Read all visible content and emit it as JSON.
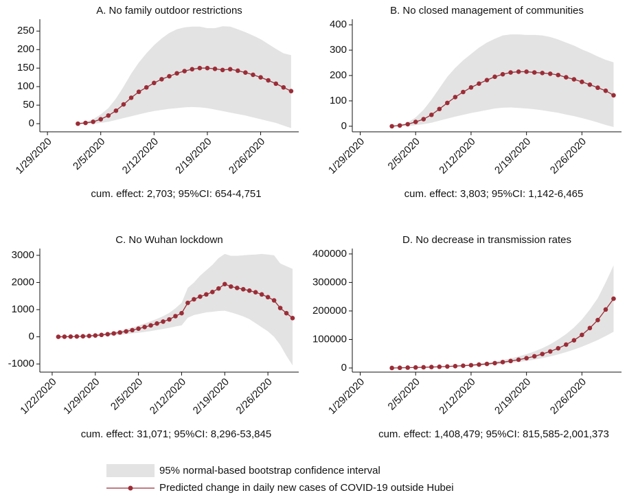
{
  "chart_data": [
    {
      "type": "line",
      "title": "A. No family outdoor restrictions",
      "note": "cum. effect: 2,703; 95%CI: 654-4,751",
      "x": [
        "2/2/2020",
        "2/3/2020",
        "2/4/2020",
        "2/5/2020",
        "2/6/2020",
        "2/7/2020",
        "2/8/2020",
        "2/9/2020",
        "2/10/2020",
        "2/11/2020",
        "2/12/2020",
        "2/13/2020",
        "2/14/2020",
        "2/15/2020",
        "2/16/2020",
        "2/17/2020",
        "2/18/2020",
        "2/19/2020",
        "2/20/2020",
        "2/21/2020",
        "2/22/2020",
        "2/23/2020",
        "2/24/2020",
        "2/25/2020",
        "2/26/2020",
        "2/27/2020",
        "2/28/2020",
        "2/29/2020",
        "3/1/2020"
      ],
      "values": [
        0,
        2,
        5,
        12,
        22,
        35,
        52,
        70,
        86,
        98,
        110,
        120,
        128,
        136,
        142,
        147,
        150,
        150,
        148,
        145,
        147,
        143,
        138,
        132,
        125,
        117,
        108,
        98,
        88
      ],
      "upper": [
        2,
        5,
        12,
        25,
        42,
        68,
        100,
        135,
        165,
        190,
        212,
        230,
        245,
        255,
        260,
        262,
        262,
        258,
        258,
        263,
        262,
        255,
        247,
        238,
        228,
        215,
        202,
        190,
        185
      ],
      "lower": [
        0,
        0,
        0,
        2,
        5,
        10,
        15,
        20,
        25,
        30,
        34,
        37,
        40,
        42,
        44,
        45,
        44,
        42,
        38,
        34,
        30,
        26,
        22,
        17,
        12,
        7,
        2,
        -5,
        -12
      ],
      "xlim": [
        "1/28/2020",
        "3/2/2020"
      ],
      "xticks": [
        "1/29/2020",
        "2/5/2020",
        "2/12/2020",
        "2/19/2020",
        "2/26/2020"
      ],
      "ylim": [
        -22,
        282
      ],
      "yticks": [
        0,
        50,
        100,
        150,
        200,
        250
      ],
      "line_color": "#9b2d37",
      "band_color": "#e3e3e3"
    },
    {
      "type": "line",
      "title": "B. No closed management of communities",
      "note": "cum. effect: 3,803; 95%CI: 1,142-6,465",
      "x": [
        "2/2/2020",
        "2/3/2020",
        "2/4/2020",
        "2/5/2020",
        "2/6/2020",
        "2/7/2020",
        "2/8/2020",
        "2/9/2020",
        "2/10/2020",
        "2/11/2020",
        "2/12/2020",
        "2/13/2020",
        "2/14/2020",
        "2/15/2020",
        "2/16/2020",
        "2/17/2020",
        "2/18/2020",
        "2/19/2020",
        "2/20/2020",
        "2/21/2020",
        "2/22/2020",
        "2/23/2020",
        "2/24/2020",
        "2/25/2020",
        "2/26/2020",
        "2/27/2020",
        "2/28/2020",
        "2/29/2020",
        "3/1/2020"
      ],
      "values": [
        0,
        3,
        8,
        17,
        28,
        45,
        68,
        92,
        115,
        135,
        153,
        168,
        182,
        195,
        205,
        212,
        215,
        215,
        212,
        210,
        207,
        202,
        193,
        185,
        175,
        164,
        152,
        140,
        122
      ],
      "upper": [
        2,
        6,
        15,
        35,
        65,
        105,
        150,
        195,
        230,
        260,
        285,
        310,
        330,
        345,
        358,
        362,
        362,
        360,
        360,
        358,
        352,
        342,
        330,
        318,
        303,
        290,
        275,
        262,
        252
      ],
      "lower": [
        0,
        0,
        1,
        4,
        8,
        14,
        22,
        30,
        38,
        45,
        52,
        58,
        64,
        70,
        73,
        74,
        72,
        70,
        67,
        63,
        58,
        53,
        46,
        40,
        32,
        24,
        15,
        5,
        -3
      ],
      "xlim": [
        "1/28/2020",
        "3/2/2020"
      ],
      "xticks": [
        "1/29/2020",
        "2/5/2020",
        "2/12/2020",
        "2/19/2020",
        "2/26/2020"
      ],
      "ylim": [
        -22,
        422
      ],
      "yticks": [
        0,
        100,
        200,
        300,
        400
      ],
      "line_color": "#9b2d37",
      "band_color": "#e3e3e3"
    },
    {
      "type": "line",
      "title": "C. No Wuhan lockdown",
      "note": "cum. effect: 31,071; 95%CI: 8,296-53,845",
      "x": [
        "1/23/2020",
        "1/24/2020",
        "1/25/2020",
        "1/26/2020",
        "1/27/2020",
        "1/28/2020",
        "1/29/2020",
        "1/30/2020",
        "1/31/2020",
        "2/1/2020",
        "2/2/2020",
        "2/3/2020",
        "2/4/2020",
        "2/5/2020",
        "2/6/2020",
        "2/7/2020",
        "2/8/2020",
        "2/9/2020",
        "2/10/2020",
        "2/11/2020",
        "2/12/2020",
        "2/13/2020",
        "2/14/2020",
        "2/15/2020",
        "2/16/2020",
        "2/17/2020",
        "2/18/2020",
        "2/19/2020",
        "2/20/2020",
        "2/21/2020",
        "2/22/2020",
        "2/23/2020",
        "2/24/2020",
        "2/25/2020",
        "2/26/2020",
        "2/27/2020",
        "2/28/2020",
        "2/29/2020",
        "3/1/2020"
      ],
      "values": [
        0,
        3,
        6,
        12,
        20,
        32,
        48,
        70,
        95,
        125,
        160,
        200,
        245,
        300,
        360,
        420,
        490,
        560,
        640,
        760,
        870,
        1250,
        1380,
        1480,
        1560,
        1650,
        1780,
        1940,
        1850,
        1800,
        1750,
        1700,
        1640,
        1560,
        1460,
        1340,
        1060,
        870,
        690
      ],
      "upper": [
        0,
        5,
        10,
        20,
        35,
        55,
        80,
        110,
        145,
        185,
        230,
        280,
        340,
        410,
        490,
        570,
        660,
        760,
        880,
        1050,
        1250,
        1800,
        2000,
        2250,
        2450,
        2650,
        2900,
        3050,
        2980,
        2980,
        3000,
        3020,
        3030,
        3050,
        3030,
        3000,
        2700,
        2600,
        2500
      ],
      "lower": [
        0,
        0,
        2,
        5,
        8,
        12,
        18,
        28,
        40,
        55,
        75,
        100,
        125,
        150,
        180,
        210,
        250,
        290,
        330,
        380,
        420,
        700,
        800,
        850,
        900,
        920,
        950,
        960,
        900,
        830,
        750,
        650,
        500,
        350,
        200,
        0,
        -300,
        -700,
        -1050
      ],
      "xlim": [
        "1/20/2020",
        "3/2/2020"
      ],
      "xticks": [
        "1/22/2020",
        "1/29/2020",
        "2/5/2020",
        "2/12/2020",
        "2/19/2020",
        "2/26/2020"
      ],
      "ylim": [
        -1300,
        3250
      ],
      "yticks": [
        -1000,
        0,
        1000,
        2000,
        3000
      ],
      "line_color": "#9b2d37",
      "band_color": "#e3e3e3"
    },
    {
      "type": "line",
      "title": "D. No decrease in transmission rates",
      "note": "cum. effect: 1,408,479; 95%CI: 815,585-2,001,373",
      "x": [
        "2/2/2020",
        "2/3/2020",
        "2/4/2020",
        "2/5/2020",
        "2/6/2020",
        "2/7/2020",
        "2/8/2020",
        "2/9/2020",
        "2/10/2020",
        "2/11/2020",
        "2/12/2020",
        "2/13/2020",
        "2/14/2020",
        "2/15/2020",
        "2/16/2020",
        "2/17/2020",
        "2/18/2020",
        "2/19/2020",
        "2/20/2020",
        "2/21/2020",
        "2/22/2020",
        "2/23/2020",
        "2/24/2020",
        "2/25/2020",
        "2/26/2020",
        "2/27/2020",
        "2/28/2020",
        "2/29/2020",
        "3/1/2020"
      ],
      "values": [
        0,
        600,
        1200,
        1800,
        2500,
        3300,
        4200,
        5300,
        6500,
        8000,
        9700,
        11800,
        14200,
        17000,
        20500,
        24500,
        29000,
        34500,
        41000,
        49000,
        58000,
        69000,
        82000,
        97000,
        116000,
        140000,
        168000,
        205000,
        243000
      ],
      "upper": [
        0,
        700,
        1400,
        2200,
        3100,
        4100,
        5300,
        6700,
        8300,
        10300,
        12600,
        15500,
        18800,
        22800,
        27800,
        33500,
        40500,
        48500,
        58000,
        69500,
        83000,
        100000,
        119000,
        142000,
        170000,
        205000,
        245000,
        300000,
        360000
      ],
      "lower": [
        0,
        500,
        1000,
        1500,
        2000,
        2600,
        3300,
        4100,
        5000,
        6100,
        7300,
        8800,
        10500,
        12500,
        15000,
        17800,
        21000,
        24800,
        29200,
        34500,
        40500,
        47500,
        55500,
        64500,
        74500,
        86000,
        98000,
        112000,
        127000
      ],
      "xlim": [
        "1/28/2020",
        "3/2/2020"
      ],
      "xticks": [
        "1/29/2020",
        "2/5/2020",
        "2/12/2020",
        "2/19/2020",
        "2/26/2020"
      ],
      "ylim": [
        -14500,
        419000
      ],
      "yticks": [
        0,
        100000,
        200000,
        300000,
        400000
      ],
      "line_color": "#9b2d37",
      "band_color": "#e3e3e3"
    }
  ],
  "legend": {
    "band_label": "95% normal-based bootstrap confidence interval",
    "line_label": "Predicted change in daily new cases of COVID-19 outside Hubei"
  }
}
